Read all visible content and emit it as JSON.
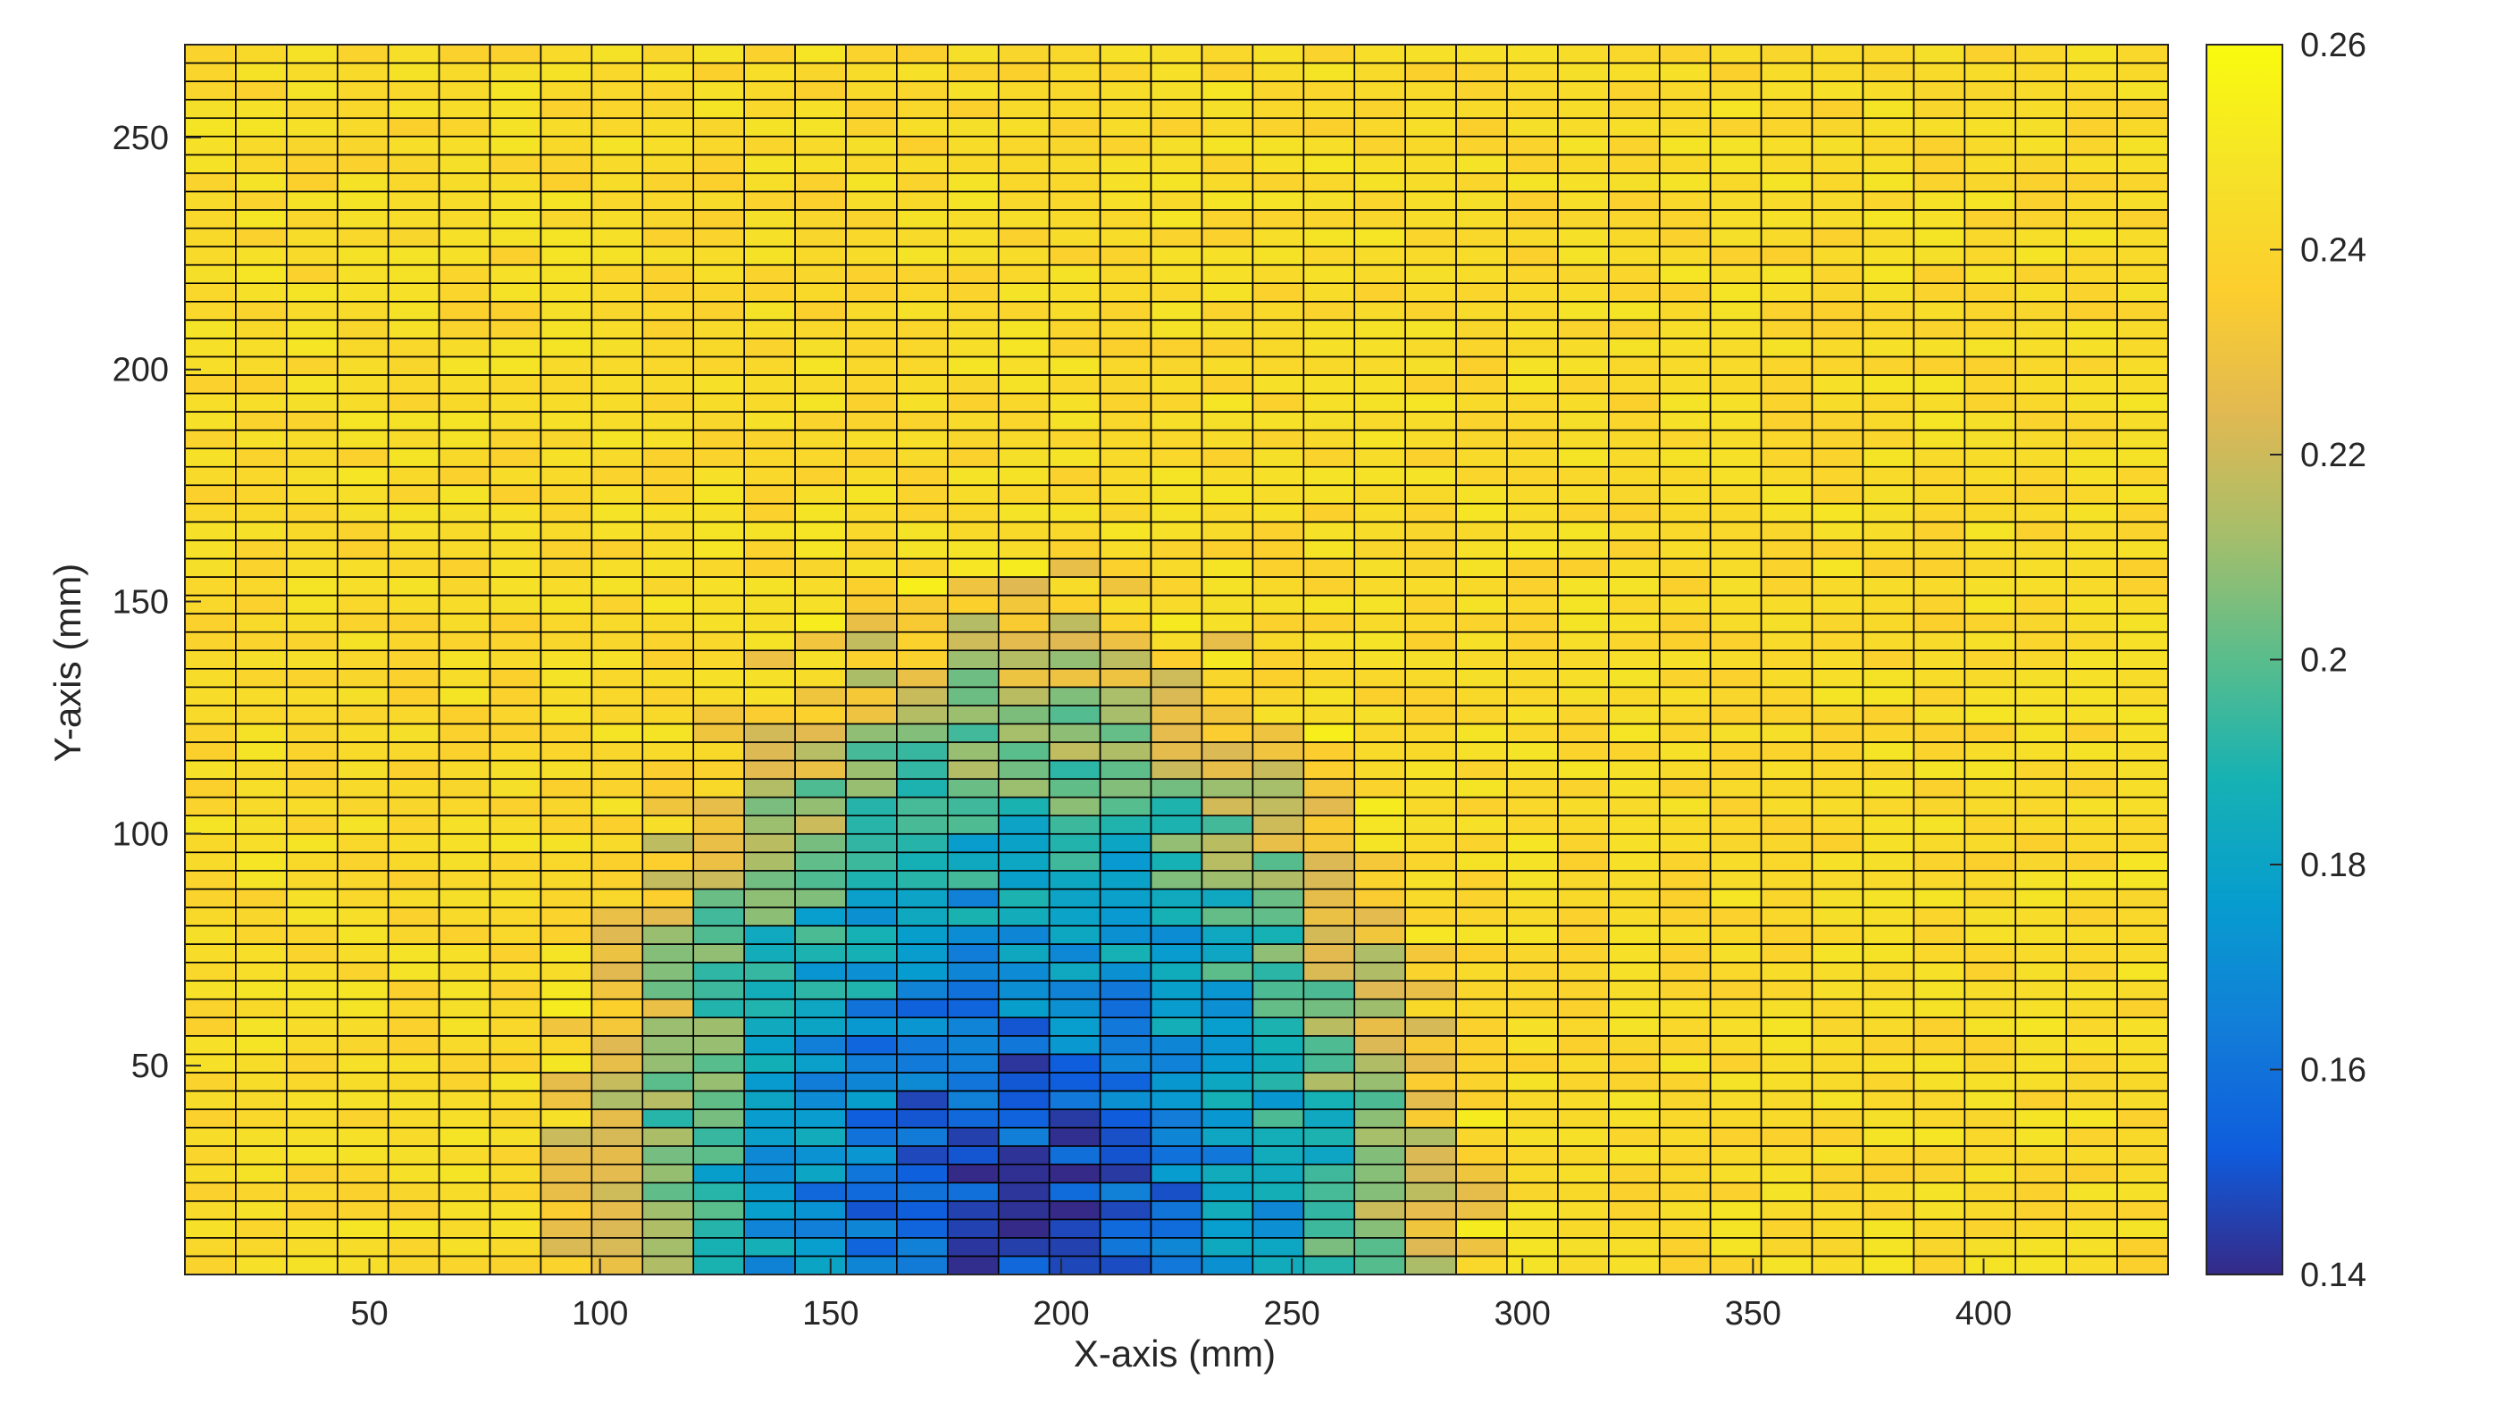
{
  "chart_data": {
    "type": "heatmap",
    "title": "",
    "xlabel": "X-axis (mm)",
    "ylabel": "Y-axis (mm)",
    "xlim": [
      10,
      440
    ],
    "ylim": [
      5,
      270
    ],
    "x_ticks": [
      "50",
      "100",
      "150",
      "200",
      "250",
      "300",
      "350",
      "400"
    ],
    "y_ticks": [
      "50",
      "100",
      "150",
      "200",
      "250"
    ],
    "colorbar": {
      "colormap": "parula",
      "clim": [
        0.14,
        0.26
      ],
      "ticks": [
        "0.14",
        "0.16",
        "0.18",
        "0.2",
        "0.22",
        "0.24",
        "0.26"
      ]
    },
    "grid": {
      "columns": 39,
      "rows": 67,
      "x_edges": [
        10,
        440
      ],
      "y_edges": [
        5,
        270
      ]
    },
    "low_region": {
      "description_value_min": 0.145,
      "description_value_background": 0.243,
      "center_x": 190,
      "center_y": 10,
      "x_extent": [
        80,
        275
      ],
      "y_extent": [
        5,
        160
      ]
    }
  }
}
